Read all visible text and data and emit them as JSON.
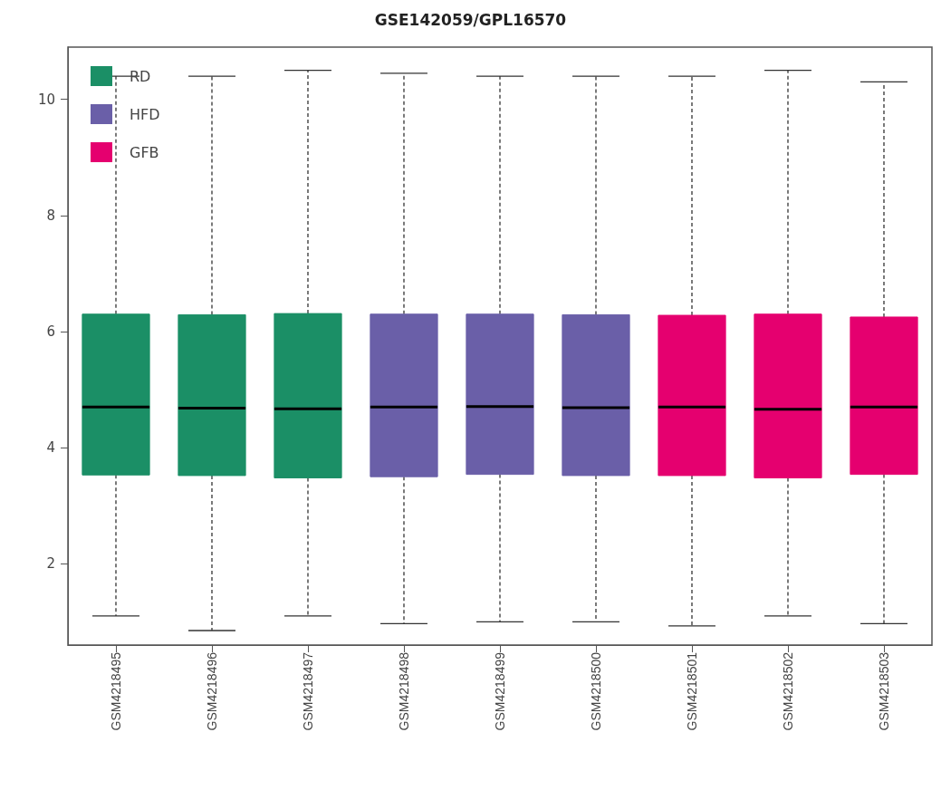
{
  "chart_data": {
    "type": "box",
    "title": "GSE142059/GPL16570",
    "categories": [
      "GSM4218495",
      "GSM4218496",
      "GSM4218497",
      "GSM4218498",
      "GSM4218499",
      "GSM4218500",
      "GSM4218501",
      "GSM4218502",
      "GSM4218503"
    ],
    "ylim": [
      0.6,
      10.9
    ],
    "yticks": [
      2,
      4,
      6,
      8,
      10
    ],
    "legend": "top left",
    "grid": false,
    "series": [
      {
        "name": "RD",
        "color": "#1b8f66",
        "boxes": [
          {
            "low": 1.1,
            "q1": 3.53,
            "median": 4.7,
            "q3": 6.3,
            "high": 10.4
          },
          {
            "low": 0.85,
            "q1": 3.52,
            "median": 4.68,
            "q3": 6.29,
            "high": 10.4
          },
          {
            "low": 1.1,
            "q1": 3.48,
            "median": 4.67,
            "q3": 6.31,
            "high": 10.5
          },
          null,
          null,
          null,
          null,
          null,
          null
        ]
      },
      {
        "name": "HFD",
        "color": "#6a5fa8",
        "boxes": [
          null,
          null,
          null,
          {
            "low": 0.97,
            "q1": 3.5,
            "median": 4.7,
            "q3": 6.3,
            "high": 10.45
          },
          {
            "low": 1.0,
            "q1": 3.54,
            "median": 4.71,
            "q3": 6.3,
            "high": 10.4
          },
          {
            "low": 1.0,
            "q1": 3.52,
            "median": 4.69,
            "q3": 6.29,
            "high": 10.4
          },
          null,
          null,
          null
        ]
      },
      {
        "name": "GFB",
        "color": "#e5006f",
        "boxes": [
          null,
          null,
          null,
          null,
          null,
          null,
          {
            "low": 0.93,
            "q1": 3.52,
            "median": 4.7,
            "q3": 6.28,
            "high": 10.4
          },
          {
            "low": 1.1,
            "q1": 3.48,
            "median": 4.66,
            "q3": 6.3,
            "high": 10.5
          },
          {
            "low": 0.97,
            "q1": 3.54,
            "median": 4.7,
            "q3": 6.25,
            "high": 10.3
          }
        ]
      }
    ]
  }
}
